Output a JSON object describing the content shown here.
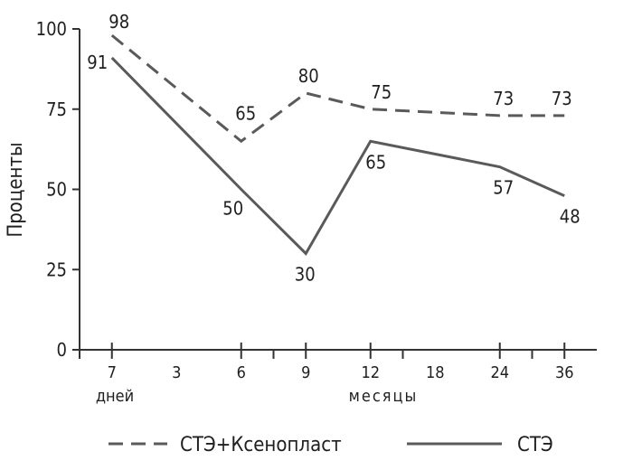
{
  "chart_data": {
    "type": "line",
    "ylabel": "Проценты",
    "ylim": [
      0,
      100
    ],
    "yticks": [
      0,
      25,
      50,
      75,
      100
    ],
    "categories": [
      "7",
      "3",
      "6",
      "9",
      "12",
      "18",
      "24",
      "36"
    ],
    "group_labels": [
      "дней",
      "месяцы"
    ],
    "series": [
      {
        "name": "СТЭ+Ксенопласт",
        "style": "dashed",
        "color": "#5a5a5a",
        "points": [
          {
            "category": "7",
            "value": 98
          },
          {
            "category": "6",
            "value": 65
          },
          {
            "category": "9",
            "value": 80
          },
          {
            "category": "12",
            "value": 75
          },
          {
            "category": "24",
            "value": 73
          },
          {
            "category": "36",
            "value": 73
          }
        ]
      },
      {
        "name": "СТЭ",
        "style": "solid",
        "color": "#5a5a5a",
        "points": [
          {
            "category": "7",
            "value": 91
          },
          {
            "category": "6",
            "value": 50
          },
          {
            "category": "9",
            "value": 30
          },
          {
            "category": "12",
            "value": 65
          },
          {
            "category": "24",
            "value": 57
          },
          {
            "category": "36",
            "value": 48
          }
        ]
      }
    ],
    "grid": false,
    "legend": "bottom"
  }
}
